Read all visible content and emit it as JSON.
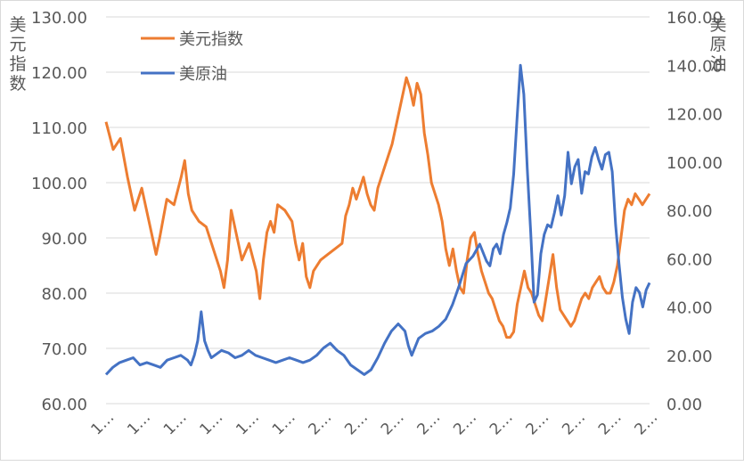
{
  "chart_data": {
    "type": "line",
    "left_axis": {
      "label_chars": [
        "美",
        "元",
        "指",
        "数"
      ],
      "ticks": [
        "60.00",
        "70.00",
        "80.00",
        "90.00",
        "100.00",
        "110.00",
        "120.00",
        "130.00"
      ],
      "ylim": [
        60,
        130
      ]
    },
    "right_axis": {
      "label_chars": [
        "美",
        "原",
        "油"
      ],
      "ticks": [
        "0.00",
        "20.00",
        "40.00",
        "60.00",
        "80.00",
        "100.00",
        "120.00",
        "140.00",
        "160.00"
      ],
      "ylim": [
        0,
        160
      ]
    },
    "x_tick_labels": [
      "1…",
      "1…",
      "1…",
      "1…",
      "1…",
      "1…",
      "2…",
      "2…",
      "2…",
      "2…",
      "2…",
      "2…",
      "2…",
      "2…",
      "2…",
      "2…"
    ],
    "grid": "horizontal",
    "legend": {
      "position": "top-left"
    },
    "series": [
      {
        "name": "美元指数",
        "axis": "left",
        "color": "#ED7D31",
        "points": [
          [
            0,
            111
          ],
          [
            2,
            106
          ],
          [
            4,
            108
          ],
          [
            6,
            101
          ],
          [
            8,
            95
          ],
          [
            10,
            99
          ],
          [
            12,
            93
          ],
          [
            13,
            90
          ],
          [
            14,
            87
          ],
          [
            15,
            90
          ],
          [
            17,
            97
          ],
          [
            19,
            96
          ],
          [
            21,
            101
          ],
          [
            22,
            104
          ],
          [
            23,
            98
          ],
          [
            24,
            95
          ],
          [
            26,
            93
          ],
          [
            28,
            92
          ],
          [
            30,
            88
          ],
          [
            32,
            84
          ],
          [
            33,
            81
          ],
          [
            34,
            86
          ],
          [
            35,
            95
          ],
          [
            36,
            92
          ],
          [
            38,
            86
          ],
          [
            40,
            89
          ],
          [
            42,
            84
          ],
          [
            43,
            79
          ],
          [
            44,
            86
          ],
          [
            45,
            91
          ],
          [
            46,
            93
          ],
          [
            47,
            91
          ],
          [
            48,
            96
          ],
          [
            50,
            95
          ],
          [
            52,
            93
          ],
          [
            53,
            89
          ],
          [
            54,
            86
          ],
          [
            55,
            89
          ],
          [
            56,
            83
          ],
          [
            57,
            81
          ],
          [
            58,
            84
          ],
          [
            60,
            86
          ],
          [
            62,
            87
          ],
          [
            64,
            88
          ],
          [
            66,
            89
          ],
          [
            67,
            94
          ],
          [
            68,
            96
          ],
          [
            69,
            99
          ],
          [
            70,
            97
          ],
          [
            71,
            99
          ],
          [
            72,
            101
          ],
          [
            73,
            98
          ],
          [
            74,
            96
          ],
          [
            75,
            95
          ],
          [
            76,
            99
          ],
          [
            78,
            103
          ],
          [
            80,
            107
          ],
          [
            82,
            113
          ],
          [
            83,
            116
          ],
          [
            84,
            119
          ],
          [
            85,
            117
          ],
          [
            86,
            114
          ],
          [
            87,
            118
          ],
          [
            88,
            116
          ],
          [
            89,
            109
          ],
          [
            90,
            105
          ],
          [
            91,
            100
          ],
          [
            92,
            98
          ],
          [
            93,
            96
          ],
          [
            94,
            93
          ],
          [
            95,
            88
          ],
          [
            96,
            85
          ],
          [
            97,
            88
          ],
          [
            98,
            84
          ],
          [
            99,
            81
          ],
          [
            100,
            80
          ],
          [
            101,
            86
          ],
          [
            102,
            90
          ],
          [
            103,
            91
          ],
          [
            104,
            87
          ],
          [
            105,
            84
          ],
          [
            106,
            82
          ],
          [
            107,
            80
          ],
          [
            108,
            79
          ],
          [
            109,
            77
          ],
          [
            110,
            75
          ],
          [
            111,
            74
          ],
          [
            112,
            72
          ],
          [
            113,
            72
          ],
          [
            114,
            73
          ],
          [
            115,
            78
          ],
          [
            116,
            81
          ],
          [
            117,
            84
          ],
          [
            118,
            81
          ],
          [
            119,
            80
          ],
          [
            120,
            78
          ],
          [
            121,
            76
          ],
          [
            122,
            75
          ],
          [
            123,
            79
          ],
          [
            124,
            83
          ],
          [
            125,
            87
          ],
          [
            126,
            81
          ],
          [
            127,
            77
          ],
          [
            128,
            76
          ],
          [
            129,
            75
          ],
          [
            130,
            74
          ],
          [
            131,
            75
          ],
          [
            132,
            77
          ],
          [
            133,
            79
          ],
          [
            134,
            80
          ],
          [
            135,
            79
          ],
          [
            136,
            81
          ],
          [
            137,
            82
          ],
          [
            138,
            83
          ],
          [
            139,
            81
          ],
          [
            140,
            80
          ],
          [
            141,
            80
          ],
          [
            142,
            82
          ],
          [
            143,
            85
          ],
          [
            144,
            90
          ],
          [
            145,
            95
          ],
          [
            146,
            97
          ],
          [
            147,
            96
          ],
          [
            148,
            98
          ],
          [
            149,
            97
          ],
          [
            150,
            96
          ],
          [
            151,
            97
          ],
          [
            152,
            98
          ]
        ]
      },
      {
        "name": "美原油",
        "axis": "right",
        "color": "#4472C4",
        "points": [
          [
            0,
            12
          ],
          [
            2,
            15
          ],
          [
            4,
            17
          ],
          [
            6,
            18
          ],
          [
            8,
            19
          ],
          [
            10,
            16
          ],
          [
            12,
            17
          ],
          [
            14,
            16
          ],
          [
            16,
            15
          ],
          [
            18,
            18
          ],
          [
            20,
            19
          ],
          [
            22,
            20
          ],
          [
            24,
            18
          ],
          [
            25,
            16
          ],
          [
            26,
            20
          ],
          [
            27,
            26
          ],
          [
            28,
            38
          ],
          [
            29,
            26
          ],
          [
            30,
            22
          ],
          [
            31,
            19
          ],
          [
            32,
            20
          ],
          [
            34,
            22
          ],
          [
            36,
            21
          ],
          [
            38,
            19
          ],
          [
            40,
            20
          ],
          [
            42,
            22
          ],
          [
            44,
            20
          ],
          [
            46,
            19
          ],
          [
            48,
            18
          ],
          [
            50,
            17
          ],
          [
            52,
            18
          ],
          [
            54,
            19
          ],
          [
            56,
            18
          ],
          [
            58,
            17
          ],
          [
            60,
            18
          ],
          [
            62,
            20
          ],
          [
            64,
            23
          ],
          [
            66,
            25
          ],
          [
            68,
            22
          ],
          [
            70,
            20
          ],
          [
            72,
            16
          ],
          [
            74,
            14
          ],
          [
            76,
            12
          ],
          [
            78,
            14
          ],
          [
            80,
            19
          ],
          [
            82,
            25
          ],
          [
            84,
            30
          ],
          [
            86,
            33
          ],
          [
            88,
            30
          ],
          [
            89,
            24
          ],
          [
            90,
            20
          ],
          [
            92,
            27
          ],
          [
            94,
            29
          ],
          [
            96,
            30
          ],
          [
            98,
            32
          ],
          [
            100,
            35
          ],
          [
            102,
            41
          ],
          [
            104,
            49
          ],
          [
            106,
            58
          ],
          [
            108,
            61
          ],
          [
            110,
            66
          ],
          [
            112,
            59
          ],
          [
            113,
            57
          ],
          [
            114,
            64
          ],
          [
            115,
            66
          ],
          [
            116,
            62
          ],
          [
            117,
            70
          ],
          [
            118,
            75
          ],
          [
            119,
            81
          ],
          [
            120,
            95
          ],
          [
            121,
            118
          ],
          [
            122,
            140
          ],
          [
            123,
            128
          ],
          [
            124,
            97
          ],
          [
            125,
            71
          ],
          [
            126,
            42
          ],
          [
            127,
            45
          ],
          [
            128,
            62
          ],
          [
            129,
            70
          ],
          [
            130,
            74
          ],
          [
            131,
            73
          ],
          [
            132,
            79
          ],
          [
            133,
            86
          ],
          [
            134,
            78
          ],
          [
            135,
            86
          ],
          [
            136,
            104
          ],
          [
            137,
            91
          ],
          [
            138,
            98
          ],
          [
            139,
            101
          ],
          [
            140,
            87
          ],
          [
            141,
            96
          ],
          [
            142,
            95
          ],
          [
            143,
            102
          ],
          [
            144,
            106
          ],
          [
            145,
            101
          ],
          [
            146,
            97
          ],
          [
            147,
            103
          ],
          [
            148,
            104
          ],
          [
            149,
            96
          ],
          [
            150,
            74
          ],
          [
            151,
            58
          ],
          [
            152,
            44
          ],
          [
            153,
            35
          ],
          [
            154,
            29
          ],
          [
            155,
            42
          ],
          [
            156,
            48
          ],
          [
            157,
            46
          ],
          [
            158,
            40
          ],
          [
            159,
            47
          ],
          [
            160,
            50
          ]
        ]
      }
    ]
  }
}
